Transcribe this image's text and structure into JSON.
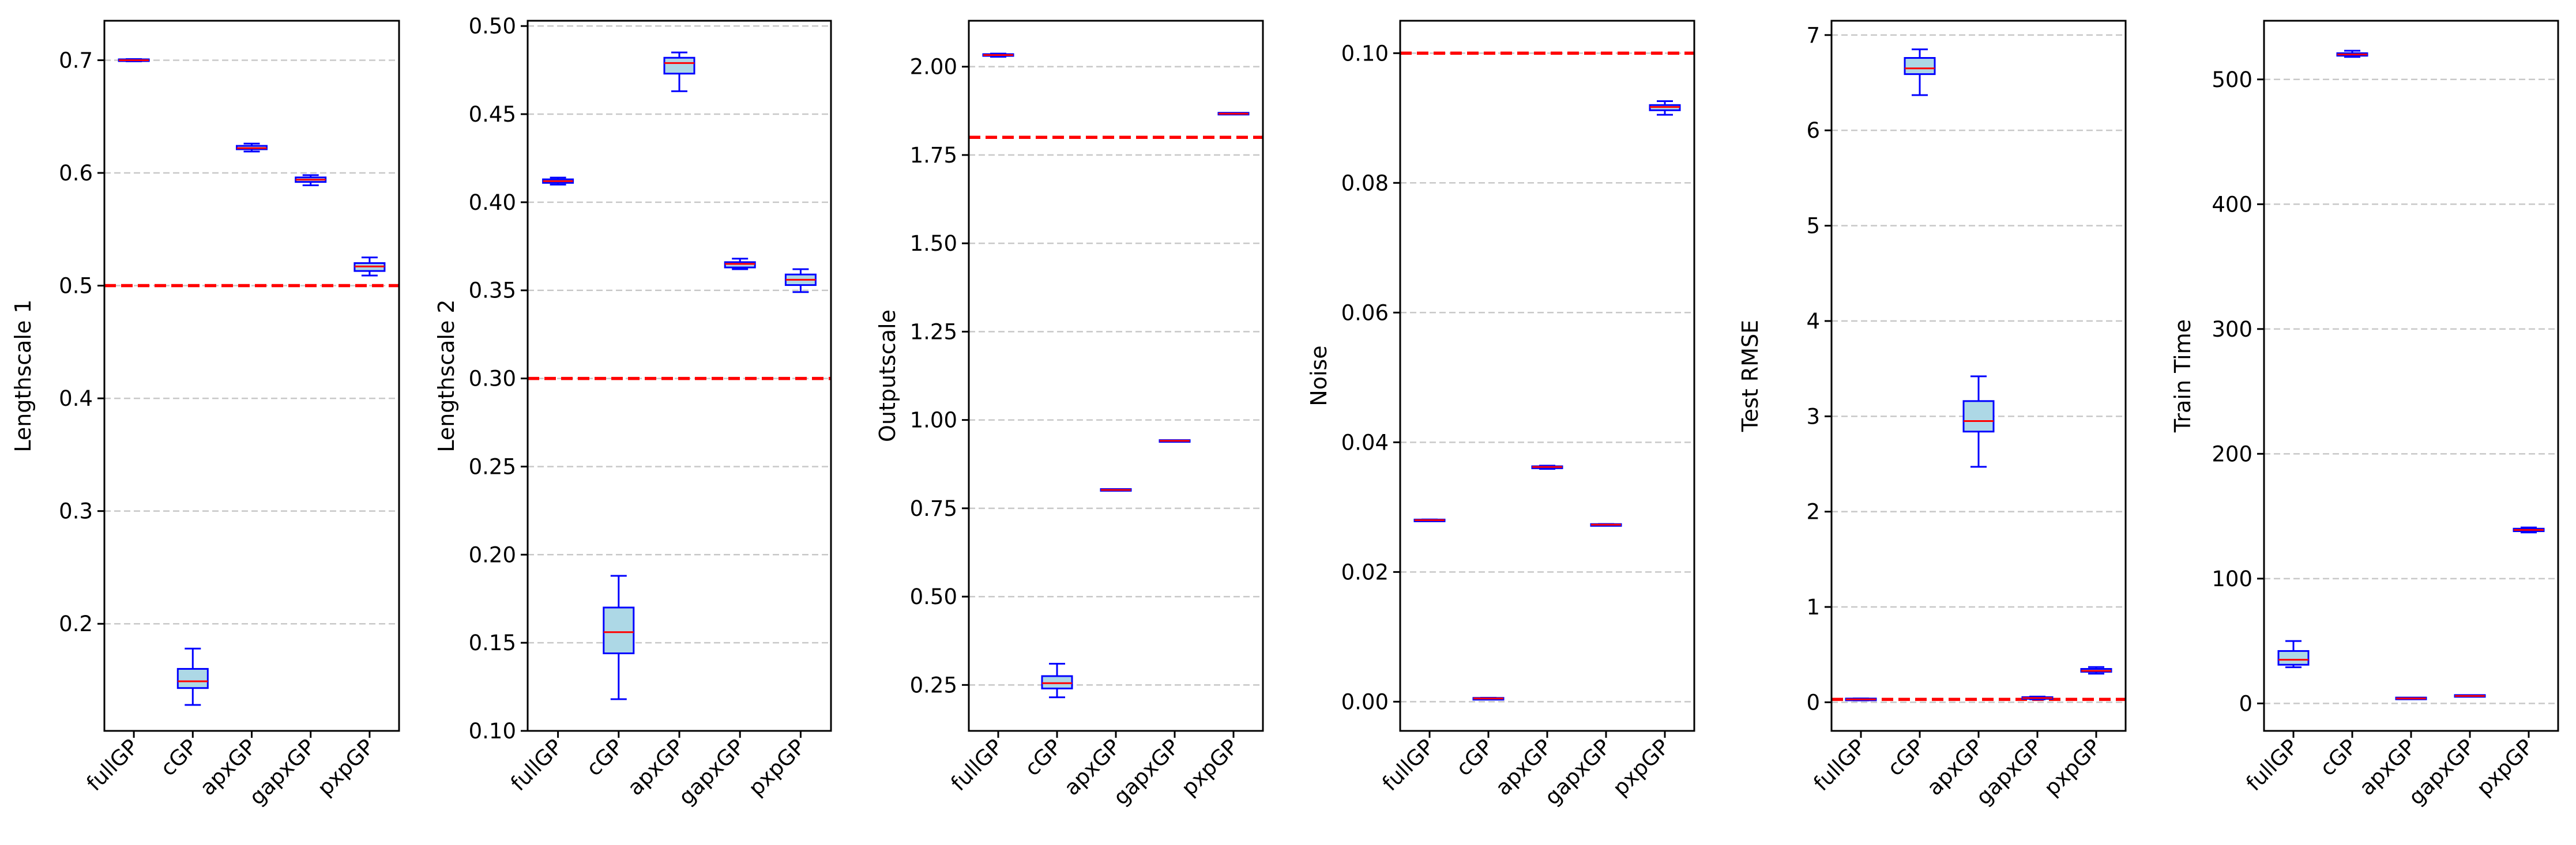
{
  "colors": {
    "box_edge": "#0000ff",
    "box_fill": "#add8e6",
    "median": "#ff0000",
    "reference_line": "#ff0000",
    "grid": "#c8c8c8",
    "axes": "#000000"
  },
  "chart_data": [
    {
      "type": "box",
      "ylabel": "Lengthscale 1",
      "categories": [
        "fullGP",
        "cGP",
        "apxGP",
        "gapxGP",
        "pxpGP"
      ],
      "ylim": [
        0.105,
        0.735
      ],
      "yticks": [
        0.2,
        0.3,
        0.4,
        0.5,
        0.6,
        0.7
      ],
      "ytick_labels": [
        "0.2",
        "0.3",
        "0.4",
        "0.5",
        "0.6",
        "0.7"
      ],
      "reference_line": 0.5,
      "grid": "y dashed",
      "boxes": [
        {
          "whislo": 0.699,
          "q1": 0.6995,
          "med": 0.7,
          "q3": 0.7005,
          "whishi": 0.701
        },
        {
          "whislo": 0.128,
          "q1": 0.143,
          "med": 0.149,
          "q3": 0.16,
          "whishi": 0.178
        },
        {
          "whislo": 0.619,
          "q1": 0.621,
          "med": 0.622,
          "q3": 0.624,
          "whishi": 0.626
        },
        {
          "whislo": 0.589,
          "q1": 0.592,
          "med": 0.594,
          "q3": 0.596,
          "whishi": 0.598
        },
        {
          "whislo": 0.509,
          "q1": 0.513,
          "med": 0.517,
          "q3": 0.52,
          "whishi": 0.525
        }
      ]
    },
    {
      "type": "box",
      "ylabel": "Lengthscale 2",
      "categories": [
        "fullGP",
        "cGP",
        "apxGP",
        "gapxGP",
        "pxpGP"
      ],
      "ylim": [
        0.1,
        0.503
      ],
      "yticks": [
        0.1,
        0.15,
        0.2,
        0.25,
        0.3,
        0.35,
        0.4,
        0.45,
        0.5
      ],
      "ytick_labels": [
        "0.10",
        "0.15",
        "0.20",
        "0.25",
        "0.30",
        "0.35",
        "0.40",
        "0.45",
        "0.50"
      ],
      "reference_line": 0.3,
      "grid": "y dashed",
      "boxes": [
        {
          "whislo": 0.41,
          "q1": 0.411,
          "med": 0.412,
          "q3": 0.413,
          "whishi": 0.414
        },
        {
          "whislo": 0.118,
          "q1": 0.144,
          "med": 0.156,
          "q3": 0.17,
          "whishi": 0.188
        },
        {
          "whislo": 0.463,
          "q1": 0.473,
          "med": 0.479,
          "q3": 0.482,
          "whishi": 0.485
        },
        {
          "whislo": 0.362,
          "q1": 0.363,
          "med": 0.365,
          "q3": 0.366,
          "whishi": 0.368
        },
        {
          "whislo": 0.349,
          "q1": 0.353,
          "med": 0.356,
          "q3": 0.359,
          "whishi": 0.362
        }
      ]
    },
    {
      "type": "box",
      "ylabel": "Outputscale",
      "categories": [
        "fullGP",
        "cGP",
        "apxGP",
        "gapxGP",
        "pxpGP"
      ],
      "ylim": [
        0.12,
        2.13
      ],
      "yticks": [
        0.25,
        0.5,
        0.75,
        1.0,
        1.25,
        1.5,
        1.75,
        2.0
      ],
      "ytick_labels": [
        "0.25",
        "0.50",
        "0.75",
        "1.00",
        "1.25",
        "1.50",
        "1.75",
        "2.00"
      ],
      "reference_line": 1.8,
      "grid": "y dashed",
      "boxes": [
        {
          "whislo": 2.028,
          "q1": 2.031,
          "med": 2.033,
          "q3": 2.035,
          "whishi": 2.037
        },
        {
          "whislo": 0.215,
          "q1": 0.24,
          "med": 0.255,
          "q3": 0.275,
          "whishi": 0.31
        },
        {
          "whislo": 0.8,
          "q1": 0.801,
          "med": 0.802,
          "q3": 0.803,
          "whishi": 0.804
        },
        {
          "whislo": 0.94,
          "q1": 0.94,
          "med": 0.941,
          "q3": 0.941,
          "whishi": 0.942
        },
        {
          "whislo": 1.865,
          "q1": 1.866,
          "med": 1.867,
          "q3": 1.868,
          "whishi": 1.869
        }
      ]
    },
    {
      "type": "box",
      "ylabel": "Noise",
      "categories": [
        "fullGP",
        "cGP",
        "apxGP",
        "gapxGP",
        "pxpGP"
      ],
      "ylim": [
        -0.0045,
        0.105
      ],
      "yticks": [
        0.0,
        0.02,
        0.04,
        0.06,
        0.08,
        0.1
      ],
      "ytick_labels": [
        "0.00",
        "0.02",
        "0.04",
        "0.06",
        "0.08",
        "0.10"
      ],
      "reference_line": 0.1,
      "grid": "y dashed",
      "boxes": [
        {
          "whislo": 0.0279,
          "q1": 0.0279,
          "med": 0.028,
          "q3": 0.028,
          "whishi": 0.0281
        },
        {
          "whislo": 0.0004,
          "q1": 0.0004,
          "med": 0.0005,
          "q3": 0.0005,
          "whishi": 0.0006
        },
        {
          "whislo": 0.0359,
          "q1": 0.036,
          "med": 0.0362,
          "q3": 0.0363,
          "whishi": 0.0364
        },
        {
          "whislo": 0.0272,
          "q1": 0.0272,
          "med": 0.0273,
          "q3": 0.0273,
          "whishi": 0.0274
        },
        {
          "whislo": 0.0905,
          "q1": 0.0912,
          "med": 0.0917,
          "q3": 0.092,
          "whishi": 0.0926
        }
      ]
    },
    {
      "type": "box",
      "ylabel": "Test RMSE",
      "categories": [
        "fullGP",
        "cGP",
        "apxGP",
        "gapxGP",
        "pxpGP"
      ],
      "ylim": [
        -0.3,
        7.15
      ],
      "yticks": [
        0,
        1,
        2,
        3,
        4,
        5,
        6,
        7
      ],
      "ytick_labels": [
        "0",
        "1",
        "2",
        "3",
        "4",
        "5",
        "6",
        "7"
      ],
      "reference_line": 0.03,
      "grid": "y dashed",
      "boxes": [
        {
          "whislo": 0.02,
          "q1": 0.025,
          "med": 0.03,
          "q3": 0.035,
          "whishi": 0.04
        },
        {
          "whislo": 6.37,
          "q1": 6.59,
          "med": 6.65,
          "q3": 6.76,
          "whishi": 6.85
        },
        {
          "whislo": 2.47,
          "q1": 2.84,
          "med": 2.95,
          "q3": 3.16,
          "whishi": 3.42
        },
        {
          "whislo": 0.03,
          "q1": 0.04,
          "med": 0.045,
          "q3": 0.05,
          "whishi": 0.06
        },
        {
          "whislo": 0.3,
          "q1": 0.32,
          "med": 0.33,
          "q3": 0.35,
          "whishi": 0.37
        }
      ]
    },
    {
      "type": "box",
      "ylabel": "Train Time",
      "categories": [
        "fullGP",
        "cGP",
        "apxGP",
        "gapxGP",
        "pxpGP"
      ],
      "ylim": [
        -22,
        547
      ],
      "yticks": [
        0,
        100,
        200,
        300,
        400,
        500
      ],
      "ytick_labels": [
        "0",
        "100",
        "200",
        "300",
        "400",
        "500"
      ],
      "reference_line": null,
      "grid": "y dashed",
      "boxes": [
        {
          "whislo": 29,
          "q1": 31,
          "med": 35,
          "q3": 42,
          "whishi": 50
        },
        {
          "whislo": 518,
          "q1": 519,
          "med": 520,
          "q3": 521,
          "whishi": 523
        },
        {
          "whislo": 3.5,
          "q1": 3.8,
          "med": 4,
          "q3": 4.2,
          "whishi": 4.5
        },
        {
          "whislo": 5.5,
          "q1": 5.8,
          "med": 6,
          "q3": 6.2,
          "whishi": 6.5
        },
        {
          "whislo": 137,
          "q1": 138,
          "med": 139,
          "q3": 140,
          "whishi": 141
        }
      ]
    }
  ]
}
